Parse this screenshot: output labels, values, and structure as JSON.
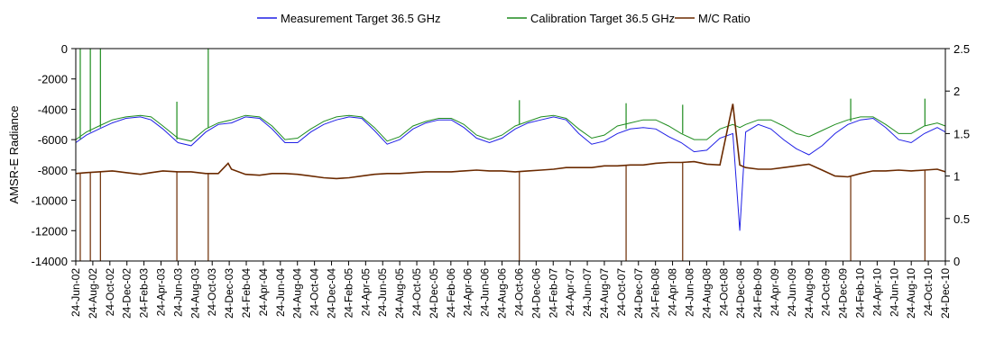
{
  "chart_data": {
    "type": "line",
    "title": "",
    "ylabel": "AMSR-E Radiance",
    "y2label": "",
    "ylim": [
      -14000,
      0
    ],
    "y2lim": [
      0,
      2.5
    ],
    "yticks": [
      0,
      -2000,
      -4000,
      -6000,
      -8000,
      -10000,
      -12000,
      -14000
    ],
    "y2ticks": [
      2.5,
      2,
      1.5,
      1,
      0.5,
      0
    ],
    "grid": false,
    "legend_position": "top",
    "x_start": "2002-06-24",
    "x_end": "2010-12-24",
    "x_tick_labels": [
      "24-Jun-02",
      "24-Aug-02",
      "24-Oct-02",
      "24-Dec-02",
      "24-Feb-03",
      "24-Apr-03",
      "24-Jun-03",
      "24-Aug-03",
      "24-Oct-03",
      "24-Dec-03",
      "24-Feb-04",
      "24-Apr-04",
      "24-Jun-04",
      "24-Aug-04",
      "24-Oct-04",
      "24-Dec-04",
      "24-Feb-05",
      "24-Apr-05",
      "24-Jun-05",
      "24-Aug-05",
      "24-Oct-05",
      "24-Dec-05",
      "24-Feb-06",
      "24-Apr-06",
      "24-Jun-06",
      "24-Aug-06",
      "24-Oct-06",
      "24-Dec-06",
      "24-Feb-07",
      "24-Apr-07",
      "24-Jun-07",
      "24-Aug-07",
      "24-Oct-07",
      "24-Dec-07",
      "24-Feb-08",
      "24-Apr-08",
      "24-Jun-08",
      "24-Aug-08",
      "24-Oct-08",
      "24-Dec-08",
      "24-Feb-09",
      "24-Apr-09",
      "24-Jun-09",
      "24-Aug-09",
      "24-Oct-09",
      "24-Dec-09",
      "24-Feb-10",
      "24-Apr-10",
      "24-Jun-10",
      "24-Aug-10",
      "24-Oct-10",
      "24-Dec-10"
    ],
    "series": [
      {
        "name": "Measurement Target 36.5 GHz",
        "axis": "left",
        "color": "#1f1fe6",
        "x": [
          "2002-06-24",
          "2002-08-01",
          "2002-09-15",
          "2002-11-01",
          "2002-12-20",
          "2003-02-10",
          "2003-03-20",
          "2003-05-01",
          "2003-06-24",
          "2003-08-10",
          "2003-10-01",
          "2003-11-15",
          "2004-01-01",
          "2004-02-20",
          "2004-04-10",
          "2004-05-25",
          "2004-07-10",
          "2004-08-24",
          "2004-10-10",
          "2004-11-25",
          "2005-01-10",
          "2005-02-24",
          "2005-04-10",
          "2005-05-25",
          "2005-07-10",
          "2005-08-24",
          "2005-10-10",
          "2005-11-25",
          "2006-01-10",
          "2006-02-24",
          "2006-04-10",
          "2006-05-25",
          "2006-07-10",
          "2006-08-24",
          "2006-10-10",
          "2006-11-25",
          "2007-01-10",
          "2007-02-24",
          "2007-04-10",
          "2007-05-25",
          "2007-07-10",
          "2007-08-24",
          "2007-10-10",
          "2007-11-25",
          "2008-01-10",
          "2008-02-24",
          "2008-04-10",
          "2008-05-25",
          "2008-07-10",
          "2008-08-24",
          "2008-10-10",
          "2008-11-25",
          "2008-12-20",
          "2009-01-10",
          "2009-02-24",
          "2009-04-10",
          "2009-05-25",
          "2009-07-10",
          "2009-08-24",
          "2009-10-10",
          "2009-11-25",
          "2010-01-10",
          "2010-02-24",
          "2010-04-10",
          "2010-05-25",
          "2010-07-10",
          "2010-08-24",
          "2010-10-10",
          "2010-11-25",
          "2010-12-24"
        ],
        "y": [
          -6200,
          -5700,
          -5300,
          -4900,
          -4600,
          -4500,
          -4700,
          -5300,
          -6200,
          -6400,
          -5500,
          -5000,
          -4900,
          -4500,
          -4600,
          -5300,
          -6200,
          -6200,
          -5500,
          -5000,
          -4700,
          -4500,
          -4600,
          -5400,
          -6300,
          -6000,
          -5300,
          -4900,
          -4700,
          -4700,
          -5200,
          -5900,
          -6200,
          -5900,
          -5300,
          -4900,
          -4700,
          -4500,
          -4700,
          -5600,
          -6300,
          -6100,
          -5600,
          -5300,
          -5200,
          -5300,
          -5800,
          -6200,
          -6800,
          -6700,
          -5900,
          -5600,
          -12000,
          -5500,
          -5000,
          -5300,
          -6000,
          -6600,
          -7000,
          -6400,
          -5600,
          -5000,
          -4700,
          -4600,
          -5200,
          -6000,
          -6200,
          -5600,
          -5200,
          -5500
        ]
      },
      {
        "name": "Calibration Target 36.5 GHz",
        "axis": "left",
        "color": "#1e8c1e",
        "x": [
          "2002-06-24",
          "2002-08-01",
          "2002-09-15",
          "2002-11-01",
          "2002-12-20",
          "2003-02-10",
          "2003-03-20",
          "2003-05-01",
          "2003-06-24",
          "2003-08-10",
          "2003-10-01",
          "2003-11-15",
          "2004-01-01",
          "2004-02-20",
          "2004-04-10",
          "2004-05-25",
          "2004-07-10",
          "2004-08-24",
          "2004-10-10",
          "2004-11-25",
          "2005-01-10",
          "2005-02-24",
          "2005-04-10",
          "2005-05-25",
          "2005-07-10",
          "2005-08-24",
          "2005-10-10",
          "2005-11-25",
          "2006-01-10",
          "2006-02-24",
          "2006-04-10",
          "2006-05-25",
          "2006-07-10",
          "2006-08-24",
          "2006-10-10",
          "2006-11-25",
          "2007-01-10",
          "2007-02-24",
          "2007-04-10",
          "2007-05-25",
          "2007-07-10",
          "2007-08-24",
          "2007-10-10",
          "2007-11-25",
          "2008-01-10",
          "2008-02-24",
          "2008-04-10",
          "2008-05-25",
          "2008-07-10",
          "2008-08-24",
          "2008-10-10",
          "2008-11-25",
          "2008-12-20",
          "2009-01-10",
          "2009-02-24",
          "2009-04-10",
          "2009-05-25",
          "2009-07-10",
          "2009-08-24",
          "2009-10-10",
          "2009-11-25",
          "2010-01-10",
          "2010-02-24",
          "2010-04-10",
          "2010-05-25",
          "2010-07-10",
          "2010-08-24",
          "2010-10-10",
          "2010-11-25",
          "2010-12-24"
        ],
        "y": [
          -6000,
          -5500,
          -5100,
          -4700,
          -4500,
          -4400,
          -4500,
          -5100,
          -5900,
          -6100,
          -5300,
          -4900,
          -4700,
          -4400,
          -4500,
          -5100,
          -6000,
          -5900,
          -5300,
          -4800,
          -4500,
          -4400,
          -4500,
          -5200,
          -6100,
          -5800,
          -5100,
          -4800,
          -4600,
          -4600,
          -5000,
          -5700,
          -6000,
          -5700,
          -5100,
          -4800,
          -4500,
          -4400,
          -4600,
          -5300,
          -5900,
          -5700,
          -5100,
          -4900,
          -4700,
          -4700,
          -5100,
          -5600,
          -6000,
          -6000,
          -5300,
          -5000,
          -5200,
          -5000,
          -4700,
          -4700,
          -5100,
          -5600,
          -5800,
          -5400,
          -5000,
          -4700,
          -4500,
          -4500,
          -5000,
          -5600,
          -5600,
          -5100,
          -4900,
          -5100
        ]
      },
      {
        "name": "M/C Ratio",
        "axis": "right",
        "color": "#6b2a00",
        "x": [
          "2002-06-24",
          "2002-08-01",
          "2002-09-15",
          "2002-11-01",
          "2002-12-20",
          "2003-02-10",
          "2003-03-20",
          "2003-05-01",
          "2003-06-24",
          "2003-08-10",
          "2003-10-01",
          "2003-11-15",
          "2003-12-20",
          "2004-01-01",
          "2004-02-20",
          "2004-04-10",
          "2004-05-25",
          "2004-07-10",
          "2004-08-24",
          "2004-10-10",
          "2004-11-25",
          "2005-01-10",
          "2005-02-24",
          "2005-04-10",
          "2005-05-25",
          "2005-07-10",
          "2005-08-24",
          "2005-10-10",
          "2005-11-25",
          "2006-01-10",
          "2006-02-24",
          "2006-04-10",
          "2006-05-25",
          "2006-07-10",
          "2006-08-24",
          "2006-10-10",
          "2006-11-25",
          "2007-01-10",
          "2007-02-24",
          "2007-04-10",
          "2007-05-25",
          "2007-07-10",
          "2007-08-24",
          "2007-10-10",
          "2007-11-25",
          "2008-01-10",
          "2008-02-24",
          "2008-04-10",
          "2008-05-25",
          "2008-07-10",
          "2008-08-24",
          "2008-10-10",
          "2008-11-25",
          "2008-12-20",
          "2009-01-10",
          "2009-02-24",
          "2009-04-10",
          "2009-05-25",
          "2009-07-10",
          "2009-08-24",
          "2009-10-10",
          "2009-11-25",
          "2010-01-10",
          "2010-02-24",
          "2010-04-10",
          "2010-05-25",
          "2010-07-10",
          "2010-08-24",
          "2010-10-10",
          "2010-11-25",
          "2010-12-24"
        ],
        "y": [
          1.03,
          1.04,
          1.05,
          1.06,
          1.04,
          1.02,
          1.04,
          1.06,
          1.05,
          1.05,
          1.03,
          1.03,
          1.15,
          1.08,
          1.02,
          1.01,
          1.03,
          1.03,
          1.02,
          1.0,
          0.98,
          0.97,
          0.98,
          1.0,
          1.02,
          1.03,
          1.03,
          1.04,
          1.05,
          1.05,
          1.05,
          1.06,
          1.07,
          1.06,
          1.06,
          1.05,
          1.06,
          1.07,
          1.08,
          1.1,
          1.1,
          1.1,
          1.12,
          1.12,
          1.13,
          1.13,
          1.15,
          1.16,
          1.16,
          1.17,
          1.14,
          1.13,
          1.85,
          1.13,
          1.1,
          1.08,
          1.08,
          1.1,
          1.12,
          1.14,
          1.07,
          1.0,
          0.99,
          1.03,
          1.06,
          1.06,
          1.07,
          1.06,
          1.07,
          1.08,
          1.05
        ]
      }
    ],
    "spikes": [
      {
        "series": "Calibration Target 36.5 GHz",
        "x": "2002-07-10",
        "from": -6000,
        "to": 0
      },
      {
        "series": "Calibration Target 36.5 GHz",
        "x": "2002-08-15",
        "from": -5500,
        "to": 0
      },
      {
        "series": "Calibration Target 36.5 GHz",
        "x": "2002-09-20",
        "from": -5200,
        "to": 0
      },
      {
        "series": "Calibration Target 36.5 GHz",
        "x": "2003-06-20",
        "from": -6000,
        "to": -3500
      },
      {
        "series": "Calibration Target 36.5 GHz",
        "x": "2003-10-10",
        "from": -5200,
        "to": 0
      },
      {
        "series": "Calibration Target 36.5 GHz",
        "x": "2006-10-25",
        "from": -5000,
        "to": -3400
      },
      {
        "series": "Calibration Target 36.5 GHz",
        "x": "2007-11-10",
        "from": -5300,
        "to": -3600
      },
      {
        "series": "Calibration Target 36.5 GHz",
        "x": "2008-05-30",
        "from": -5600,
        "to": -3700
      },
      {
        "series": "Calibration Target 36.5 GHz",
        "x": "2010-01-20",
        "from": -4800,
        "to": -3300
      },
      {
        "series": "Calibration Target 36.5 GHz",
        "x": "2010-10-12",
        "from": -5100,
        "to": -3300
      },
      {
        "series": "M/C Ratio",
        "x": "2002-07-10",
        "from": 1.03,
        "to": 0
      },
      {
        "series": "M/C Ratio",
        "x": "2002-08-15",
        "from": 1.04,
        "to": 0
      },
      {
        "series": "M/C Ratio",
        "x": "2002-09-20",
        "from": 1.05,
        "to": 0
      },
      {
        "series": "M/C Ratio",
        "x": "2003-06-20",
        "from": 1.05,
        "to": 0
      },
      {
        "series": "M/C Ratio",
        "x": "2003-10-10",
        "from": 1.03,
        "to": 0
      },
      {
        "series": "M/C Ratio",
        "x": "2006-10-25",
        "from": 1.05,
        "to": 0
      },
      {
        "series": "M/C Ratio",
        "x": "2007-11-10",
        "from": 1.12,
        "to": 0
      },
      {
        "series": "M/C Ratio",
        "x": "2008-05-30",
        "from": 1.16,
        "to": 0
      },
      {
        "series": "M/C Ratio",
        "x": "2010-01-20",
        "from": 1.0,
        "to": 0
      },
      {
        "series": "M/C Ratio",
        "x": "2010-10-12",
        "from": 1.07,
        "to": 0
      }
    ]
  }
}
